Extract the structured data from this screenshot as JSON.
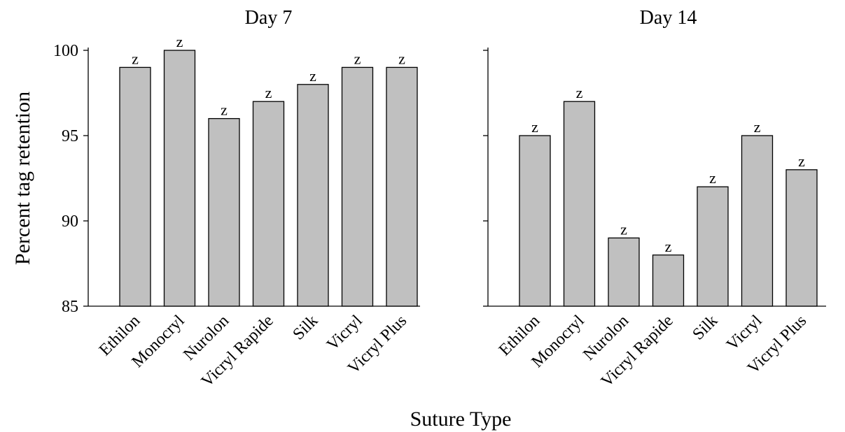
{
  "chart_data": {
    "type": "bar",
    "ylabel": "Percent tag retention",
    "xlabel": "Suture Type",
    "ylim": [
      85,
      100
    ],
    "yticks": [
      85,
      90,
      95,
      100
    ],
    "bar_color": "#c0c0c0",
    "edge_color": "#000000",
    "categories": [
      "Ethilon",
      "Monocryl",
      "Nurolon",
      "Vicryl Rapide",
      "Silk",
      "Vicryl",
      "Vicryl Plus"
    ],
    "panels": [
      {
        "title": "Day 7",
        "values": [
          99,
          100,
          96,
          97,
          98,
          99,
          99
        ],
        "bar_labels": [
          "z",
          "z",
          "z",
          "z",
          "z",
          "z",
          "z"
        ]
      },
      {
        "title": "Day 14",
        "values": [
          95,
          97,
          89,
          88,
          92,
          95,
          93
        ],
        "bar_labels": [
          "z",
          "z",
          "z",
          "z",
          "z",
          "z",
          "z"
        ]
      }
    ]
  }
}
